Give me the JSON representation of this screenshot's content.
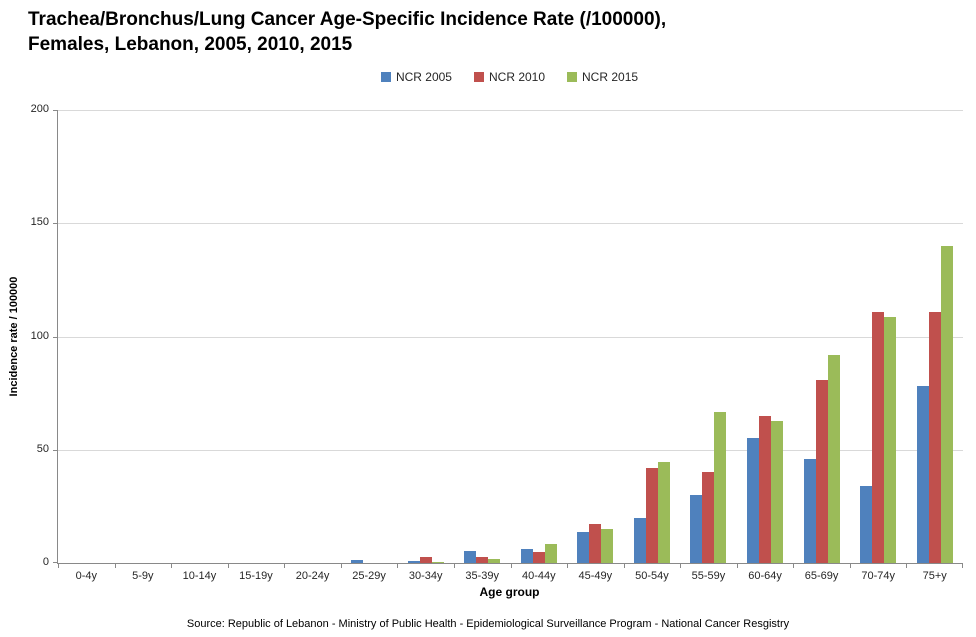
{
  "title": {
    "line1": "Trachea/Bronchus/Lung Cancer Age-Specific Incidence Rate (/100000),",
    "line2": "Females, Lebanon, 2005, 2010, 2015"
  },
  "source": "Source: Republic of Lebanon - Ministry of Public Health - Epidemiological Surveillance Program - National Cancer Resgistry",
  "chart_data": {
    "type": "bar",
    "title": "Trachea/Bronchus/Lung Cancer Age-Specific Incidence Rate (/100000), Females, Lebanon, 2005, 2010, 2015",
    "xlabel": "Age group",
    "ylabel": "Incidence rate / 100000",
    "ylim": [
      0,
      200
    ],
    "yticks": [
      0,
      50,
      100,
      150,
      200
    ],
    "grid": true,
    "legend_position": "top",
    "categories": [
      "0-4y",
      "5-9y",
      "10-14y",
      "15-19y",
      "20-24y",
      "25-29y",
      "30-34y",
      "35-39y",
      "40-44y",
      "45-49y",
      "50-54y",
      "55-59y",
      "60-64y",
      "65-69y",
      "70-74y",
      "75+y"
    ],
    "series": [
      {
        "name": "NCR 2005",
        "color": "#4F81BD",
        "values": [
          0,
          0,
          0,
          0,
          0,
          1.3,
          1,
          5.3,
          6,
          13.5,
          20,
          30,
          55,
          46,
          34,
          78
        ]
      },
      {
        "name": "NCR 2010",
        "color": "#C0504D",
        "values": [
          0,
          0,
          0,
          0,
          0,
          0,
          2.7,
          2.8,
          5,
          17,
          42,
          40,
          65,
          81,
          111,
          111
        ]
      },
      {
        "name": "NCR 2015",
        "color": "#9BBB59",
        "values": [
          0,
          0,
          0,
          0,
          0,
          0,
          0.6,
          1.8,
          8.3,
          15,
          44.5,
          66.5,
          62.5,
          92,
          108.5,
          140
        ]
      }
    ]
  }
}
